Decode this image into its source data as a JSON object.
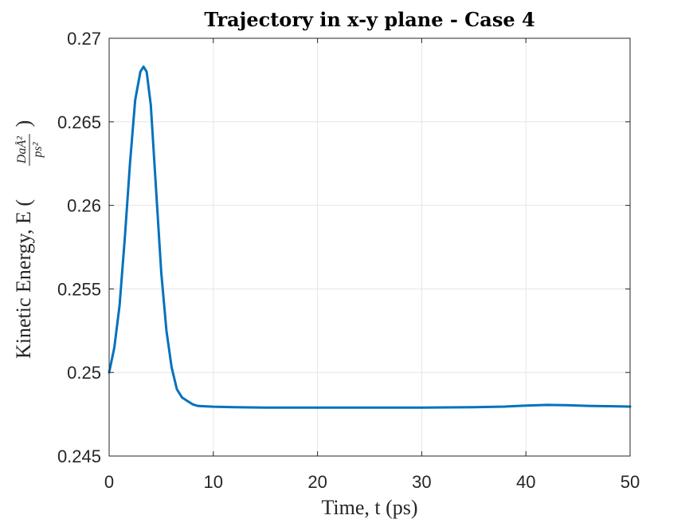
{
  "chart_data": {
    "type": "line",
    "title": "Trajectory in x-y plane - Case 4",
    "xlabel": "Time, t (ps)",
    "ylabel_prefix": "Kinetic Energy, E (",
    "ylabel_frac_numerator": "DaÅ²",
    "ylabel_frac_denominator": "ps²",
    "ylabel_suffix": ")",
    "xlim": [
      0,
      50
    ],
    "ylim": [
      0.245,
      0.27
    ],
    "grid": true,
    "line_color": "#0072BD",
    "xticks": [
      {
        "value": 0,
        "label": "0"
      },
      {
        "value": 10,
        "label": "10"
      },
      {
        "value": 20,
        "label": "20"
      },
      {
        "value": 30,
        "label": "30"
      },
      {
        "value": 40,
        "label": "40"
      },
      {
        "value": 50,
        "label": "50"
      }
    ],
    "yticks": [
      {
        "value": 0.245,
        "label": "0.245"
      },
      {
        "value": 0.25,
        "label": "0.25"
      },
      {
        "value": 0.255,
        "label": "0.255"
      },
      {
        "value": 0.26,
        "label": "0.26"
      },
      {
        "value": 0.265,
        "label": "0.265"
      },
      {
        "value": 0.27,
        "label": "0.27"
      }
    ],
    "series": [
      {
        "x": [
          0,
          0.5,
          1.0,
          1.5,
          2.0,
          2.5,
          3.0,
          3.3,
          3.6,
          4.0,
          4.5,
          5.0,
          5.5,
          6.0,
          6.5,
          7.0,
          7.5,
          8.0,
          8.5,
          9.0,
          10,
          12,
          15,
          20,
          25,
          30,
          35,
          38,
          40,
          42,
          44,
          46,
          48,
          50
        ],
        "y": [
          0.25,
          0.2515,
          0.254,
          0.258,
          0.2625,
          0.2663,
          0.268,
          0.2683,
          0.268,
          0.266,
          0.261,
          0.256,
          0.2525,
          0.2503,
          0.249,
          0.2485,
          0.2483,
          0.2481,
          0.248,
          0.24798,
          0.24795,
          0.24792,
          0.2479,
          0.2479,
          0.2479,
          0.2479,
          0.24792,
          0.24796,
          0.24802,
          0.24806,
          0.24804,
          0.248,
          0.24798,
          0.24796
        ]
      }
    ]
  }
}
